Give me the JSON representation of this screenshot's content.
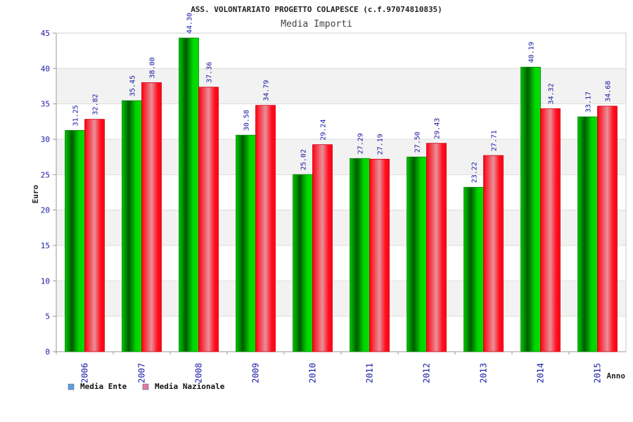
{
  "chart_data": {
    "type": "bar",
    "title": "ASS. VOLONTARIATO PROGETTO COLAPESCE (c.f.97074810835)",
    "subtitle": "Media Importi",
    "xlabel": "Anno",
    "ylabel": "Euro",
    "ylim": [
      0,
      45
    ],
    "yticks": [
      0,
      5,
      10,
      15,
      20,
      25,
      30,
      35,
      40,
      45
    ],
    "categories": [
      "2006",
      "2007",
      "2008",
      "2009",
      "2010",
      "2011",
      "2012",
      "2013",
      "2014",
      "2015"
    ],
    "series": [
      {
        "name": "Media Ente",
        "values": [
          31.25,
          35.45,
          44.3,
          30.58,
          25.02,
          27.29,
          27.5,
          23.22,
          40.19,
          33.17
        ],
        "labels": [
          "31.25",
          "35.45",
          "44.30",
          "30.58",
          "25.02",
          "27.29",
          "27.50",
          "23.22",
          "40.19",
          "33.17"
        ],
        "color": "#00a000",
        "legend_color": "#5aa0e6"
      },
      {
        "name": "Media Nazionale",
        "values": [
          32.82,
          38.0,
          37.36,
          34.79,
          29.24,
          27.19,
          29.43,
          27.71,
          34.32,
          34.68
        ],
        "labels": [
          "32.82",
          "38.00",
          "37.36",
          "34.79",
          "29.24",
          "27.19",
          "29.43",
          "27.71",
          "34.32",
          "34.68"
        ],
        "color": "#ee1122",
        "legend_color": "#e07aa8"
      }
    ],
    "grid": true,
    "legend_position": "bottom-left"
  }
}
